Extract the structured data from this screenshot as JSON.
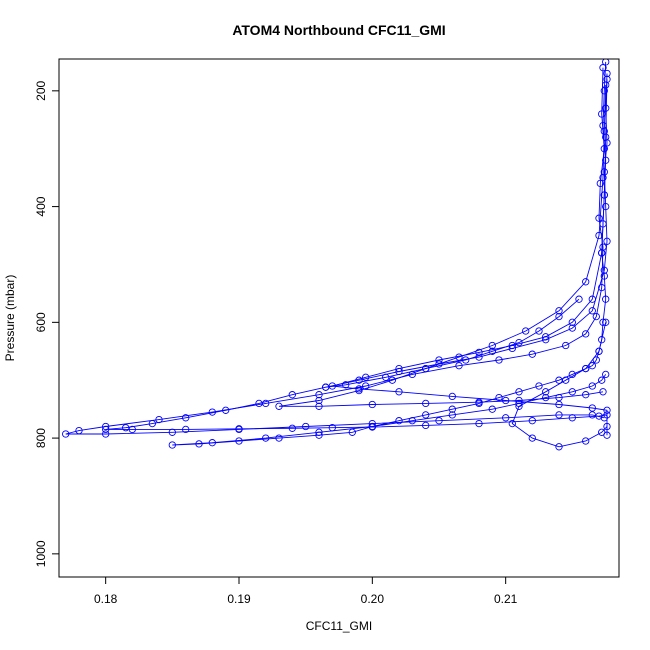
{
  "chart_data": {
    "type": "scatter",
    "title": "ATOM4 Northbound CFC11_GMI",
    "xlabel": "CFC11_GMI",
    "ylabel": "Pressure (mbar)",
    "xlim": [
      0.1765,
      0.2185
    ],
    "ylim": [
      1040,
      145
    ],
    "y_reversed": true,
    "x_ticks": [
      "0.18",
      "0.19",
      "0.20",
      "0.21"
    ],
    "x_tick_values": [
      0.18,
      0.19,
      0.2,
      0.21
    ],
    "y_ticks": [
      "200",
      "400",
      "600",
      "800",
      "1000"
    ],
    "y_tick_values": [
      200,
      400,
      600,
      800,
      1000
    ],
    "grid": false,
    "legend": "none",
    "series": [
      {
        "color": "#0000ff",
        "marker": "open-circle",
        "connected": true,
        "x": [
          0.2175,
          0.2174,
          0.2173,
          0.2175,
          0.2174,
          0.2173,
          0.2172,
          0.2174,
          0.2175,
          0.2173,
          0.2172,
          0.217,
          0.2168,
          0.2165,
          0.216,
          0.215,
          0.214,
          0.2125,
          0.211,
          0.2095,
          0.208,
          0.206,
          0.204,
          0.202,
          0.2,
          0.1985,
          0.196,
          0.193,
          0.19,
          0.187,
          0.185,
          0.188,
          0.192,
          0.196,
          0.2,
          0.203,
          0.206,
          0.209,
          0.211,
          0.213,
          0.215,
          0.2165,
          0.2172,
          0.2175
        ],
        "y": [
          150,
          200,
          260,
          320,
          380,
          430,
          480,
          520,
          560,
          600,
          630,
          650,
          665,
          675,
          680,
          690,
          700,
          710,
          720,
          730,
          740,
          750,
          760,
          770,
          780,
          790,
          795,
          800,
          805,
          810,
          812,
          808,
          800,
          790,
          780,
          770,
          760,
          750,
          740,
          730,
          720,
          710,
          700,
          690
        ]
      },
      {
        "color": "#0000ff",
        "marker": "open-circle",
        "connected": true,
        "x": [
          0.2173,
          0.2172,
          0.2174,
          0.2171,
          0.217,
          0.2173,
          0.2172,
          0.2168,
          0.216,
          0.2145,
          0.212,
          0.2095,
          0.2065,
          0.203,
          0.1995,
          0.196,
          0.192,
          0.188,
          0.184,
          0.18,
          0.178,
          0.177,
          0.18,
          0.185,
          0.19,
          0.195,
          0.2,
          0.205,
          0.21,
          0.214,
          0.2165,
          0.2174
        ],
        "y": [
          160,
          240,
          300,
          360,
          420,
          470,
          540,
          590,
          620,
          640,
          655,
          665,
          675,
          690,
          710,
          725,
          740,
          755,
          768,
          780,
          787,
          793,
          793,
          790,
          785,
          780,
          775,
          770,
          765,
          760,
          760,
          765
        ]
      },
      {
        "color": "#0000ff",
        "marker": "open-circle",
        "connected": true,
        "x": [
          0.2176,
          0.2175,
          0.2176,
          0.2174,
          0.2175,
          0.2176,
          0.2174,
          0.2165,
          0.215,
          0.213,
          0.2105,
          0.208,
          0.205,
          0.202,
          0.199,
          0.1965,
          0.194,
          0.1915,
          0.189,
          0.186,
          0.1835,
          0.1815,
          0.18,
          0.182,
          0.186,
          0.19,
          0.194,
          0.197,
          0.2,
          0.204,
          0.208,
          0.212,
          0.215,
          0.217,
          0.2176
        ],
        "y": [
          170,
          230,
          290,
          340,
          400,
          460,
          510,
          580,
          610,
          630,
          645,
          660,
          672,
          685,
          700,
          712,
          725,
          740,
          752,
          765,
          775,
          782,
          785,
          785,
          785,
          784,
          783,
          782,
          781,
          778,
          775,
          770,
          765,
          762,
          760
        ]
      },
      {
        "color": "#0000ff",
        "marker": "open-circle",
        "connected": true,
        "x": [
          0.2176,
          0.2175,
          0.2174,
          0.2172,
          0.2165,
          0.215,
          0.213,
          0.2105,
          0.208,
          0.205,
          0.202,
          0.1995,
          0.197,
          0.199,
          0.202,
          0.206,
          0.21,
          0.214,
          0.2165,
          0.2176,
          0.2176
        ],
        "y": [
          180,
          280,
          380,
          480,
          560,
          600,
          625,
          640,
          652,
          665,
          680,
          695,
          710,
          715,
          720,
          728,
          735,
          742,
          748,
          752,
          795
        ]
      },
      {
        "color": "#0000ff",
        "marker": "open-circle",
        "connected": true,
        "x": [
          0.2175,
          0.2174,
          0.2173,
          0.217,
          0.216,
          0.214,
          0.2115,
          0.209,
          0.2065,
          0.204,
          0.2015,
          0.199,
          0.196,
          0.193,
          0.196,
          0.2,
          0.204,
          0.208,
          0.211,
          0.214,
          0.216,
          0.2173
        ],
        "y": [
          190,
          270,
          350,
          450,
          530,
          580,
          615,
          640,
          660,
          680,
          700,
          718,
          735,
          745,
          745,
          742,
          740,
          738,
          735,
          730,
          725,
          720
        ]
      },
      {
        "color": "#0000ff",
        "marker": "open-circle",
        "connected": true,
        "x": [
          0.2175,
          0.217,
          0.216,
          0.2145,
          0.213,
          0.211,
          0.2105,
          0.212,
          0.214,
          0.216,
          0.2172,
          0.2176
        ],
        "y": [
          600,
          650,
          680,
          700,
          720,
          745,
          775,
          800,
          815,
          805,
          790,
          780
        ]
      },
      {
        "color": "#0000ff",
        "marker": "open-circle",
        "connected": true,
        "x": [
          0.2155,
          0.214,
          0.2125,
          0.211,
          0.209,
          0.207,
          0.204,
          0.201,
          0.198,
          0.1965
        ],
        "y": [
          560,
          590,
          615,
          635,
          650,
          665,
          680,
          695,
          708,
          712
        ]
      }
    ]
  }
}
